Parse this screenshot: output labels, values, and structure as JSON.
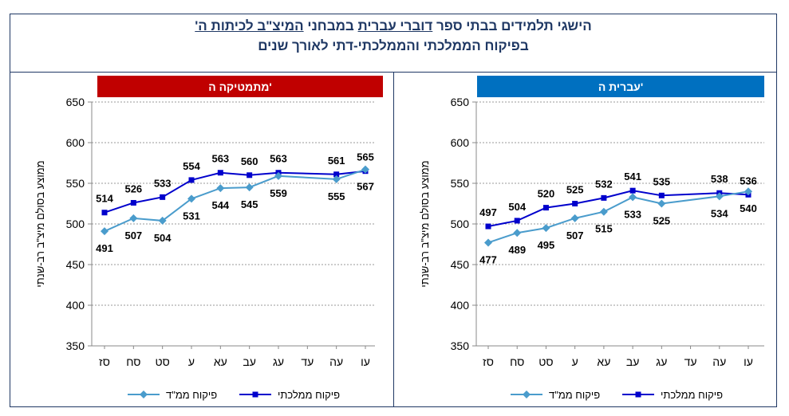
{
  "title": {
    "line1_parts": [
      "הישגי תלמידים בבתי ספר ",
      "דוברי עברית",
      " במבחני ",
      "המיצ\"ב לכיתות ה'"
    ],
    "line2": "בפיקוח הממלכתי והממלכתי-דתי לאורך שנים"
  },
  "chart_data": [
    {
      "type": "line",
      "title": "מתמטיקה ה'",
      "title_color": "#c00000",
      "ylabel": "ממוצע בסולם מיצ\"ב רב-שנתי",
      "ylim": [
        350,
        650
      ],
      "yticks": [
        350,
        400,
        450,
        500,
        550,
        600,
        650
      ],
      "grid": true,
      "legend": "bottom",
      "categories": [
        "סז",
        "סח",
        "סט",
        "ע",
        "עא",
        "עב",
        "עג",
        "עד",
        "עה",
        "עו"
      ],
      "series": [
        {
          "name": "פיקוח ממלכתי",
          "color": "#0000cc",
          "marker": "square",
          "values": [
            514,
            526,
            533,
            554,
            563,
            560,
            563,
            null,
            561,
            565
          ]
        },
        {
          "name": "פיקוח ממ\"ד",
          "color": "#4a9ccc",
          "marker": "diamond",
          "values": [
            491,
            507,
            504,
            531,
            544,
            545,
            559,
            null,
            555,
            567
          ]
        }
      ]
    },
    {
      "type": "line",
      "title": "עברית ה'",
      "title_color": "#0070c0",
      "ylabel": "ממוצע בסולם מיצ\"ב רב-שנתי",
      "ylim": [
        350,
        650
      ],
      "yticks": [
        350,
        400,
        450,
        500,
        550,
        600,
        650
      ],
      "grid": true,
      "legend": "bottom",
      "categories": [
        "סז",
        "סח",
        "סט",
        "ע",
        "עא",
        "עב",
        "עג",
        "עד",
        "עה",
        "עו"
      ],
      "series": [
        {
          "name": "פיקוח ממלכתי",
          "color": "#0000cc",
          "marker": "square",
          "values": [
            497,
            504,
            520,
            525,
            532,
            541,
            535,
            null,
            538,
            536
          ]
        },
        {
          "name": "פיקוח ממ\"ד",
          "color": "#4a9ccc",
          "marker": "diamond",
          "values": [
            477,
            489,
            495,
            507,
            515,
            533,
            525,
            null,
            534,
            540
          ]
        }
      ]
    }
  ]
}
